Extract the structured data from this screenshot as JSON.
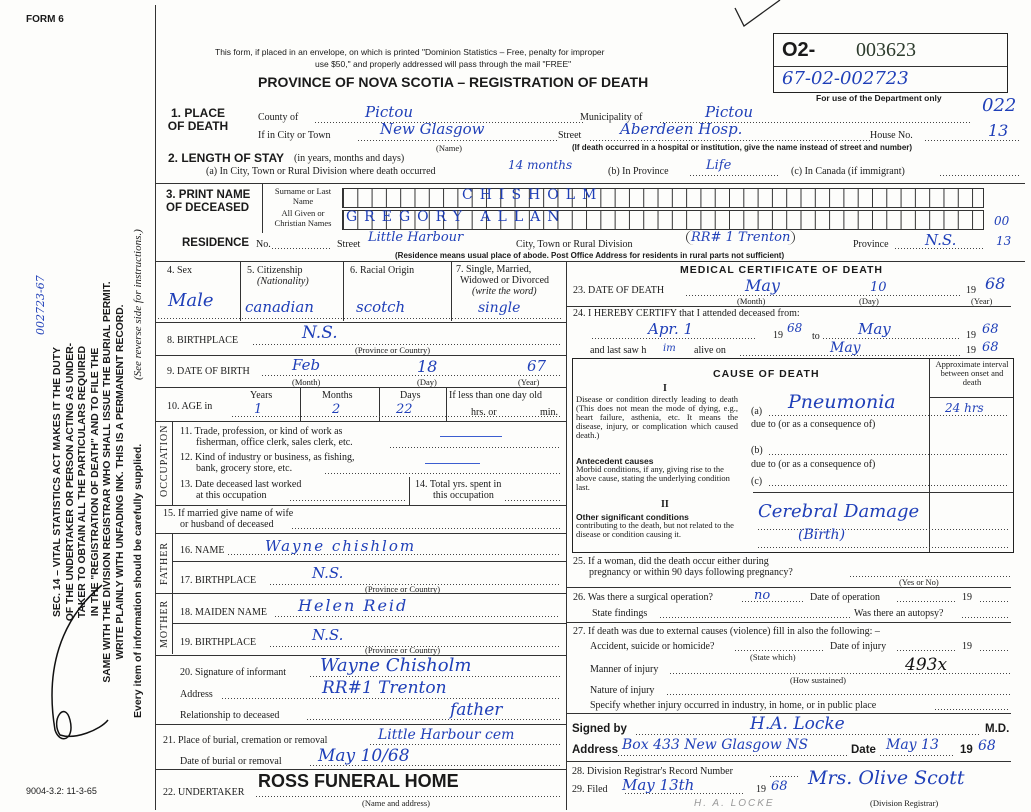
{
  "form_number": "FORM 6",
  "form_code": "9004-3.2: 11-3-65",
  "side_notice": [
    "SEC. 14 – VITAL STATISTICS ACT MAKES IT THE DUTY",
    "OF THE UNDERTAKER OR PERSON ACTING AS UNDER-",
    "TAKER TO OBTAIN ALL THE PARTICULARS REQUIRED",
    "IN THE \"REGISTRATION OF DEATH\" AND TO FILE THE",
    "SAME WITH THE DIVISION REGISTRAR WHO SHALL ISSUE THE BURIAL PERMIT.",
    "WRITE PLAINLY WITH UNFADING INK. THIS IS A PERMANENT RECORD."
  ],
  "side_every_item": "Every item of information should be carefully supplied.",
  "side_see_reverse": "(See reverse side for instructions.)",
  "side_handwritten": "002723-67",
  "header": {
    "mail_notice_1": "This form, if placed in an envelope, on which is printed \"Dominion Statistics – Free, penalty for improper",
    "mail_notice_2": "use $50,\" and properly addressed will pass through the mail \"FREE\"",
    "title": "PROVINCE OF NOVA SCOTIA – REGISTRATION OF DEATH",
    "reg_prefix": "O2-",
    "reg_number": "003623",
    "reg_handwritten": "67-02-002723",
    "dept_only": "For use of the Department only",
    "code_1": "022",
    "code_2": "13"
  },
  "place_of_death": {
    "label": "1. PLACE OF DEATH",
    "county_label": "County of",
    "county": "Pictou",
    "municipality_label": "Municipality of",
    "municipality": "Pictou",
    "city_label": "If in City or Town",
    "city": "New Glasgow",
    "name_hint": "(Name)",
    "street_label": "Street",
    "street": "Aberdeen Hosp.",
    "house_label": "House No.",
    "hospital_note": "(If death occurred in a hospital or institution, give the name instead of street and number)"
  },
  "length_of_stay": {
    "label": "2. LENGTH OF STAY",
    "hint": "(in years, months and days)",
    "a_label": "(a) In City, Town or Rural Division where death occurred",
    "a": "14 months",
    "b_label": "(b) In Province",
    "b": "Life",
    "c_label": "(c) In Canada (if immigrant)"
  },
  "deceased": {
    "label": "3. PRINT NAME OF DECEASED",
    "surname_label": "Surname or Last Name",
    "surname": "CHISHOLM",
    "given_label": "All Given or Christian Names",
    "given": "GREGORY ALLAN"
  },
  "residence": {
    "label": "RESIDENCE",
    "no_label": "No.",
    "street_label": "Street",
    "street": "Little Harbour",
    "city_label": "City, Town or Rural Division",
    "city": "RR# 1 Trenton",
    "province_label": "Province",
    "province": "N.S.",
    "code_1": "00",
    "code_2": "13",
    "note": "(Residence means usual place of abode. Post Office Address for residents in rural parts not sufficient)"
  },
  "personal": {
    "sex_label": "4. Sex",
    "sex": "Male",
    "citizenship_label": "5. Citizenship",
    "citizenship_hint": "(Nationality)",
    "citizenship": "canadian",
    "racial_label": "6. Racial Origin",
    "racial": "scotch",
    "marital_label_1": "7. Single, Married,",
    "marital_label_2": "Widowed or Divorced",
    "marital_hint": "(write the word)",
    "marital": "single",
    "birthplace_label": "8. BIRTHPLACE",
    "birthplace": "N.S.",
    "prov_hint": "(Province or Country)",
    "dob_label": "9. DATE OF BIRTH",
    "dob_month": "Feb",
    "dob_day": "18",
    "dob_year": "67",
    "month_hint": "(Month)",
    "day_hint": "(Day)",
    "year_hint": "(Year)",
    "age_label": "10. AGE in",
    "years_label": "Years",
    "months_label": "Months",
    "days_label": "Days",
    "age_years": "1",
    "age_months": "2",
    "age_days": "22",
    "less_day_label": "If less than one day old",
    "hrs_label": "hrs. or",
    "min_label": "min."
  },
  "occupation": {
    "label": "OCCUPATION",
    "q11_1": "11. Trade, profession, or kind of work as",
    "q11_2": "fisherman, office clerk, sales clerk, etc.",
    "q12_1": "12. Kind of industry or business, as fishing,",
    "q12_2": "bank, grocery store, etc.",
    "q13_1": "13. Date deceased last worked",
    "q13_2": "at this occupation",
    "q14_1": "14. Total yrs. spent in",
    "q14_2": "this occupation"
  },
  "spouse": {
    "q15_1": "15. If married give name of wife",
    "q15_2": "or husband of deceased"
  },
  "father": {
    "label": "FATHER",
    "name_label": "16. NAME",
    "name": "Wayne chishlom",
    "birthplace_label": "17. BIRTHPLACE",
    "birthplace": "N.S."
  },
  "mother": {
    "label": "MOTHER",
    "maiden_label": "18. MAIDEN NAME",
    "maiden": "Helen Reid",
    "birthplace_label": "19. BIRTHPLACE",
    "birthplace": "N.S."
  },
  "informant": {
    "sig_label": "20. Signature of informant",
    "signature": "Wayne Chisholm",
    "address_label": "Address",
    "address": "RR#1 Trenton",
    "relationship_label": "Relationship to deceased",
    "relationship": "father"
  },
  "burial": {
    "place_label": "21. Place of burial, cremation or removal",
    "place": "Little Harbour cem",
    "date_label": "Date of burial or removal",
    "date": "May 10/68"
  },
  "undertaker": {
    "label": "22. UNDERTAKER",
    "value": "ROSS FUNERAL HOME",
    "hint": "(Name and address)"
  },
  "medical": {
    "title": "MEDICAL CERTIFICATE OF DEATH",
    "dod_label": "23. DATE OF DEATH",
    "dod_month": "May",
    "dod_day": "10",
    "dod_year": "68",
    "nineteen": "19",
    "certify_label": "24. I HEREBY CERTIFY that I attended deceased from:",
    "from": "Apr. 1",
    "from_year": "68",
    "to_label": "to",
    "to": "May",
    "to_year": "68",
    "last_saw_label": "and last saw h",
    "last_saw_pronoun": "im",
    "alive_on_label": "alive on",
    "alive_on": "May",
    "alive_year": "68"
  },
  "cause": {
    "title": "CAUSE OF DEATH",
    "interval_label": "Approximate interval between onset and death",
    "part1": "I",
    "direct_label": "Disease or condition directly leading to death (This does not mean the mode of dying, e.g., heart failure, asthenia, etc. It means the disease, injury, or complication which caused death.)",
    "a_label": "(a)",
    "a": "Pneumonia",
    "a_interval": "24 hrs",
    "due_to": "due to (or as a consequence of)",
    "antecedent_title": "Antecedent causes",
    "antecedent_text": "Morbid conditions, if any, giving rise to the above cause, stating the underlying condition last.",
    "b_label": "(b)",
    "c_label": "(c)",
    "part2": "II",
    "other_title": "Other significant conditions",
    "other_text": "contributing to the death, but not related to the disease or condition causing it.",
    "other": "Cerebral Damage",
    "other_2": "(Birth)"
  },
  "q25": {
    "l1": "25. If a woman, did the death occur either during",
    "l2": "pregnancy or within 90 days following pregnancy?",
    "hint": "(Yes or No)"
  },
  "q26": {
    "l1": "26. Was there a surgical operation?",
    "value": "no",
    "date_label": "Date of operation",
    "nineteen": "19",
    "findings_label": "State findings",
    "autopsy_label": "Was there an autopsy?"
  },
  "q27": {
    "l1": "27. If death was due to external causes (violence) fill in also the following: –",
    "accident_label": "Accident, suicide or homicide?",
    "state_which": "(State which)",
    "date_label": "Date of injury",
    "nineteen": "19",
    "manner_label": "Manner of injury",
    "how_sustained": "(How sustained)",
    "manner_code": "493x",
    "nature_label": "Nature of injury",
    "specify_label": "Specify whether injury occurred in industry, in home, or in public place"
  },
  "signed": {
    "signed_label": "Signed by",
    "signed": "H.A. Locke",
    "md": "M.D.",
    "address_label": "Address",
    "address": "Box 433 New Glasgow NS",
    "date_label": "Date",
    "date": "May 13",
    "nineteen": "19",
    "year": "68"
  },
  "registrar": {
    "q28": "28. Division Registrar's Record Number",
    "q29": "29. Filed",
    "filed": "May 13th",
    "nineteen": "19",
    "year": "68",
    "registrar_signature": "Mrs. Olive Scott",
    "registrar_label": "(Division Registrar)",
    "stamp": "H. A. LOCKE"
  },
  "colors": {
    "ink": "#1f3fb8",
    "print": "#1a1a1a",
    "paper": "#fdfdfb"
  }
}
